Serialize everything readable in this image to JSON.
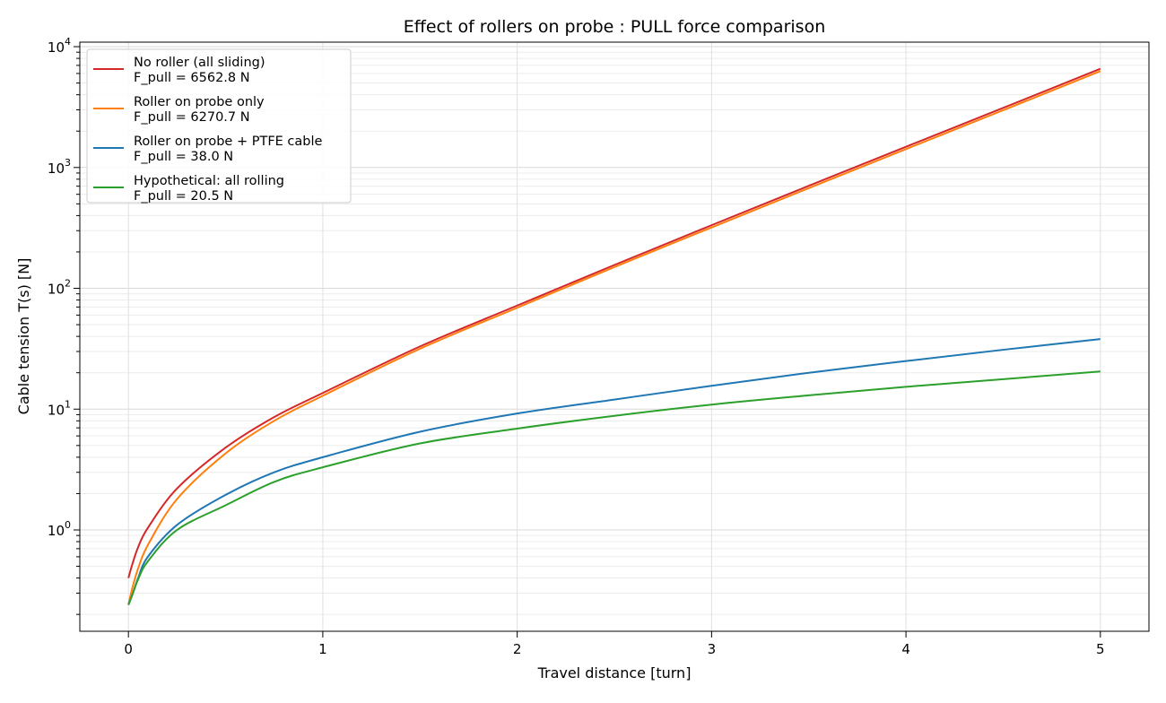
{
  "chart_data": {
    "type": "line",
    "title": "Effect of rollers on probe : PULL force comparison",
    "xlabel": "Travel distance [turn]",
    "ylabel": "Cable tension T(s) [N]",
    "xlim": [
      -0.25,
      5.25
    ],
    "ylim": [
      0.145,
      10900
    ],
    "yscale": "log",
    "xticks": [
      0,
      1,
      2,
      3,
      4,
      5
    ],
    "xtick_labels": [
      "0",
      "1",
      "2",
      "3",
      "4",
      "5"
    ],
    "yticks": [
      1,
      10,
      100,
      1000,
      10000
    ],
    "ytick_labels": [
      "10^0",
      "10^1",
      "10^2",
      "10^3",
      "10^4"
    ],
    "grid": "major and minor",
    "legend_position": "top-left",
    "x": [
      0,
      0.02,
      0.05,
      0.1,
      0.25,
      0.5,
      0.75,
      1,
      1.5,
      2,
      2.5,
      3,
      3.5,
      4,
      4.5,
      5
    ],
    "series": [
      {
        "name": "No roller (all sliding)",
        "label2": "F_pull = 6562.8 N",
        "color": "#d62728",
        "values": [
          0.4,
          0.52,
          0.72,
          1.04,
          2.2,
          4.8,
          8.6,
          13.6,
          33.0,
          72,
          156,
          333,
          705,
          1485,
          3115,
          6562.8
        ]
      },
      {
        "name": "Roller on probe only",
        "label2": "F_pull = 6270.7 N",
        "color": "#ff7f0e",
        "values": [
          0.24,
          0.33,
          0.48,
          0.75,
          1.8,
          4.3,
          8.0,
          12.9,
          31.6,
          69,
          150,
          319,
          675,
          1420,
          2980,
          6270.7
        ]
      },
      {
        "name": "Roller on probe + PTFE cable",
        "label2": "F_pull = 38.0 N",
        "color": "#1f77b4",
        "values": [
          0.24,
          0.29,
          0.4,
          0.6,
          1.1,
          1.95,
          3.0,
          4.0,
          6.5,
          9.2,
          12.0,
          15.6,
          20.0,
          25.0,
          31.0,
          38.0
        ]
      },
      {
        "name": "Hypothetical: all rolling",
        "label2": "F_pull = 20.5 N",
        "color": "#2ca02c",
        "values": [
          0.24,
          0.29,
          0.39,
          0.55,
          1.0,
          1.6,
          2.5,
          3.3,
          5.2,
          6.9,
          8.8,
          10.9,
          13.0,
          15.3,
          17.7,
          20.5
        ]
      }
    ]
  }
}
